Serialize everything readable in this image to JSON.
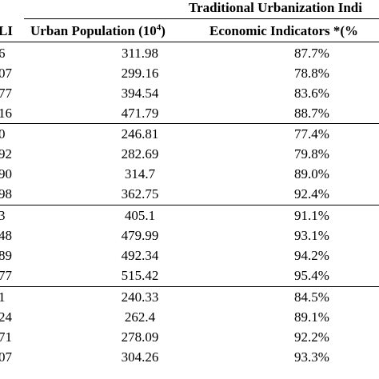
{
  "header": {
    "group_title": "Traditional Urbanization Indi",
    "left_col_fragment": "LI",
    "col_urban_population": "Urban Population (10",
    "col_urban_population_sup": "4",
    "col_urban_population_close": ")",
    "col_economic_indicators": "Economic Indicators *(%"
  },
  "groups": [
    {
      "rows": [
        {
          "left": "6",
          "urban_population": "311.98",
          "economic": "87.7%"
        },
        {
          "left": "07",
          "urban_population": "299.16",
          "economic": "78.8%"
        },
        {
          "left": "77",
          "urban_population": "394.54",
          "economic": "83.6%"
        },
        {
          "left": "16",
          "urban_population": "471.79",
          "economic": "88.7%"
        }
      ]
    },
    {
      "rows": [
        {
          "left": "0",
          "urban_population": "246.81",
          "economic": "77.4%"
        },
        {
          "left": "92",
          "urban_population": "282.69",
          "economic": "79.8%"
        },
        {
          "left": "90",
          "urban_population": "314.7",
          "economic": "89.0%"
        },
        {
          "left": "98",
          "urban_population": "362.75",
          "economic": "92.4%"
        }
      ]
    },
    {
      "rows": [
        {
          "left": "3",
          "urban_population": "405.1",
          "economic": "91.1%"
        },
        {
          "left": "48",
          "urban_population": "479.99",
          "economic": "93.1%"
        },
        {
          "left": "89",
          "urban_population": "492.34",
          "economic": "94.2%"
        },
        {
          "left": "77",
          "urban_population": "515.42",
          "economic": "95.4%"
        }
      ]
    },
    {
      "rows": [
        {
          "left": "1",
          "urban_population": "240.33",
          "economic": "84.5%"
        },
        {
          "left": "24",
          "urban_population": "262.4",
          "economic": "89.1%"
        },
        {
          "left": "71",
          "urban_population": "278.09",
          "economic": "92.2%"
        },
        {
          "left": "07",
          "urban_population": "304.26",
          "economic": "93.3%"
        }
      ]
    }
  ]
}
